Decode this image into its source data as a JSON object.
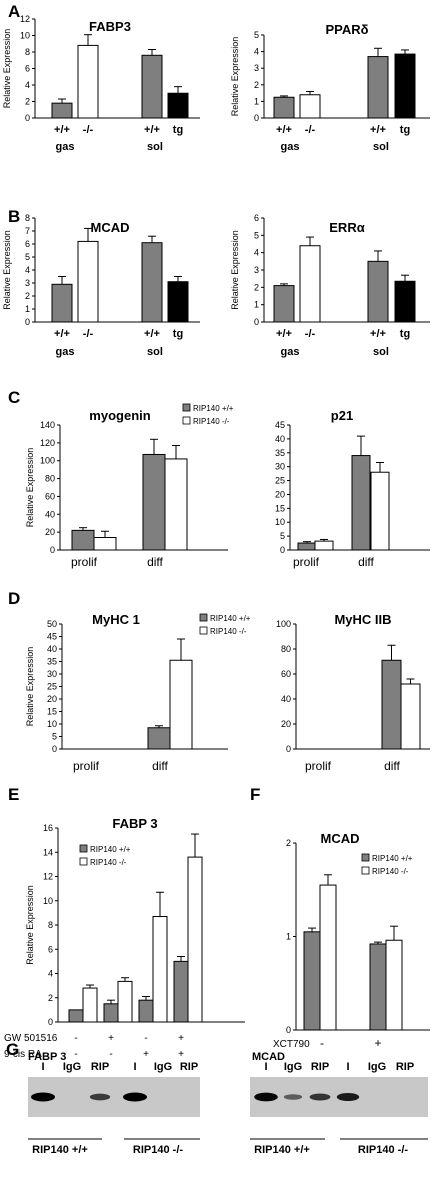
{
  "panel_letters": [
    "A",
    "B",
    "C",
    "D",
    "E",
    "F",
    "G"
  ],
  "colors": {
    "grey": "#7f7f7f",
    "white": "#ffffff",
    "black": "#000000",
    "gel_bg": "#c8c8c8"
  },
  "chart_data": [
    {
      "id": "A1",
      "type": "bar",
      "title": "FABP3",
      "ylabel": "Relative Expression",
      "categories": [
        "+/+",
        "-/-",
        "+/+",
        "tg"
      ],
      "groups": [
        {
          "label": "gas",
          "categories": [
            0,
            1
          ]
        },
        {
          "label": "sol",
          "categories": [
            2,
            3
          ]
        }
      ],
      "values": [
        1.8,
        8.8,
        7.6,
        3.0
      ],
      "errors": [
        0.5,
        1.3,
        0.7,
        0.8
      ],
      "fill": [
        "grey",
        "white",
        "grey",
        "black"
      ],
      "ylim": [
        0,
        12
      ],
      "yticks": [
        "0",
        "2",
        "4",
        "6",
        "8",
        "10",
        "12"
      ]
    },
    {
      "id": "A2",
      "type": "bar",
      "title": "PPARδ",
      "ylabel": "Relative Expression",
      "categories": [
        "+/+",
        "-/-",
        "+/+",
        "tg"
      ],
      "groups": [
        {
          "label": "gas",
          "categories": [
            0,
            1
          ]
        },
        {
          "label": "sol",
          "categories": [
            2,
            3
          ]
        }
      ],
      "values": [
        1.25,
        1.4,
        3.7,
        3.85
      ],
      "errors": [
        0.08,
        0.2,
        0.5,
        0.25
      ],
      "fill": [
        "grey",
        "white",
        "grey",
        "black"
      ],
      "ylim": [
        0,
        5
      ],
      "yticks": [
        "0",
        "1",
        "2",
        "3",
        "4",
        "5"
      ]
    },
    {
      "id": "B1",
      "type": "bar",
      "title": "MCAD",
      "ylabel": "Relative Expression",
      "categories": [
        "+/+",
        "-/-",
        "+/+",
        "tg"
      ],
      "groups": [
        {
          "label": "gas",
          "categories": [
            0,
            1
          ]
        },
        {
          "label": "sol",
          "categories": [
            2,
            3
          ]
        }
      ],
      "values": [
        2.9,
        6.2,
        6.1,
        3.1
      ],
      "errors": [
        0.6,
        1.0,
        0.5,
        0.4
      ],
      "fill": [
        "grey",
        "white",
        "grey",
        "black"
      ],
      "ylim": [
        0,
        8
      ],
      "yticks": [
        "0",
        "1",
        "2",
        "3",
        "4",
        "5",
        "6",
        "7",
        "8"
      ]
    },
    {
      "id": "B2",
      "type": "bar",
      "title": "ERRα",
      "ylabel": "Relative Expression",
      "categories": [
        "+/+",
        "-/-",
        "+/+",
        "tg"
      ],
      "groups": [
        {
          "label": "gas",
          "categories": [
            0,
            1
          ]
        },
        {
          "label": "sol",
          "categories": [
            2,
            3
          ]
        }
      ],
      "values": [
        2.1,
        4.4,
        3.5,
        2.35
      ],
      "errors": [
        0.1,
        0.5,
        0.6,
        0.35
      ],
      "fill": [
        "grey",
        "white",
        "grey",
        "black"
      ],
      "ylim": [
        0,
        6
      ],
      "yticks": [
        "0",
        "1",
        "2",
        "3",
        "4",
        "5",
        "6"
      ]
    },
    {
      "id": "C1",
      "type": "bar",
      "title": "myogenin",
      "ylabel": "Relative Expression",
      "categories": [
        "prolif",
        "diff"
      ],
      "series": [
        {
          "name": "RIP140 +/+",
          "values": [
            22,
            107
          ],
          "errors": [
            3,
            17
          ]
        },
        {
          "name": "RIP140 -/-",
          "values": [
            14,
            102
          ],
          "errors": [
            7,
            15
          ]
        }
      ],
      "ylim": [
        0,
        140
      ],
      "yticks": [
        "0",
        "20",
        "40",
        "60",
        "80",
        "100",
        "120",
        "140"
      ],
      "legend": "top-right"
    },
    {
      "id": "C2",
      "type": "bar",
      "title": "p21",
      "ylabel": "",
      "categories": [
        "prolif",
        "diff"
      ],
      "series": [
        {
          "name": "",
          "values": [
            2.5,
            34
          ],
          "errors": [
            0.5,
            7
          ]
        },
        {
          "name": "",
          "values": [
            3.2,
            28
          ],
          "errors": [
            0.6,
            3.5
          ]
        }
      ],
      "ylim": [
        0,
        45
      ],
      "yticks": [
        "0",
        "5",
        "10",
        "15",
        "20",
        "25",
        "30",
        "35",
        "40",
        "45"
      ]
    },
    {
      "id": "D1",
      "type": "bar",
      "title": "MyHC 1",
      "ylabel": "Relative Expression",
      "categories": [
        "prolif",
        "diff"
      ],
      "series": [
        {
          "name": "RIP140 +/+",
          "values": [
            0,
            8.5
          ],
          "errors": [
            0,
            0.8
          ]
        },
        {
          "name": "RIP140 -/-",
          "values": [
            0,
            35.5
          ],
          "errors": [
            0,
            8.5
          ]
        }
      ],
      "ylim": [
        0,
        50
      ],
      "yticks": [
        "0",
        "5",
        "10",
        "15",
        "20",
        "25",
        "30",
        "35",
        "40",
        "45",
        "50"
      ],
      "legend": "top-right"
    },
    {
      "id": "D2",
      "type": "bar",
      "title": "MyHC IIB",
      "ylabel": "",
      "categories": [
        "prolif",
        "diff"
      ],
      "series": [
        {
          "name": "",
          "values": [
            0,
            71
          ],
          "errors": [
            0,
            12
          ]
        },
        {
          "name": "",
          "values": [
            0,
            52
          ],
          "errors": [
            0,
            4
          ]
        }
      ],
      "ylim": [
        0,
        100
      ],
      "yticks": [
        "0",
        "20",
        "40",
        "60",
        "80",
        "100"
      ]
    },
    {
      "id": "E",
      "type": "bar",
      "title": "FABP 3",
      "ylabel": "Relative Expression",
      "categories": [
        "1",
        "2",
        "3",
        "4"
      ],
      "treatments": [
        {
          "label": "GW 501516",
          "marks": [
            "-",
            "+",
            "-",
            "+"
          ]
        },
        {
          "label": "9-cis RA",
          "marks": [
            "-",
            "-",
            "+",
            "+"
          ]
        }
      ],
      "series": [
        {
          "name": "RIP140 +/+",
          "values": [
            1.0,
            1.5,
            1.8,
            5.0
          ],
          "errors": [
            0.0,
            0.3,
            0.3,
            0.4
          ]
        },
        {
          "name": "RIP140 -/-",
          "values": [
            2.8,
            3.35,
            8.7,
            13.6
          ],
          "errors": [
            0.25,
            0.3,
            2.0,
            1.9
          ]
        }
      ],
      "ylim": [
        0,
        16
      ],
      "yticks": [
        "0",
        "2",
        "4",
        "6",
        "8",
        "10",
        "12",
        "14",
        "16"
      ],
      "legend": "top-left"
    },
    {
      "id": "F",
      "type": "bar",
      "title": "MCAD",
      "ylabel": "",
      "categories": [
        "-",
        "+"
      ],
      "treatment_label": "XCT790",
      "series": [
        {
          "name": "RIP140 +/+",
          "values": [
            1.05,
            0.92
          ],
          "errors": [
            0.04,
            0.02
          ]
        },
        {
          "name": "RIP140 -/-",
          "values": [
            1.55,
            0.96
          ],
          "errors": [
            0.11,
            0.15
          ]
        }
      ],
      "ylim": [
        0,
        2
      ],
      "yticks": [
        "0",
        "1",
        "2"
      ],
      "legend": "top-right"
    }
  ],
  "gels": [
    {
      "id": "G1",
      "title": "FABP 3",
      "lanes": [
        "I",
        "IgG",
        "RIP",
        "I",
        "IgG",
        "RIP"
      ],
      "band_intensity": [
        1.0,
        0.0,
        0.55,
        1.0,
        0.0,
        0.0
      ],
      "groups": [
        "RIP140 +/+",
        "RIP140 -/-"
      ]
    },
    {
      "id": "G2",
      "title": "MCAD",
      "lanes": [
        "I",
        "IgG",
        "RIP",
        "I",
        "IgG",
        "RIP"
      ],
      "band_intensity": [
        0.95,
        0.3,
        0.6,
        0.8,
        0.0,
        0.0
      ],
      "groups": [
        "RIP140 +/+",
        "RIP140 -/-"
      ]
    }
  ]
}
